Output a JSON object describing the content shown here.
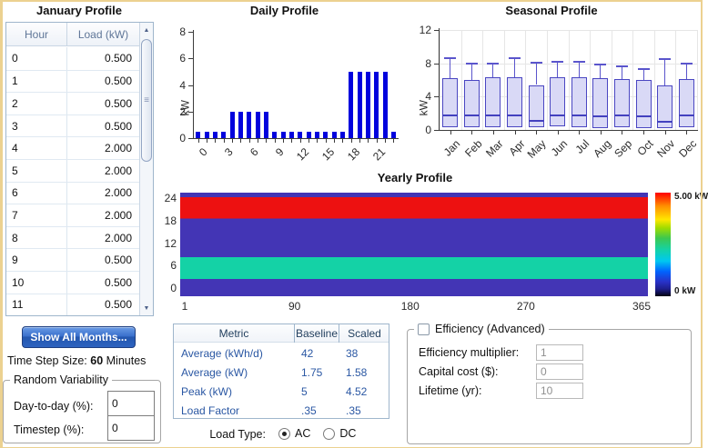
{
  "window": {
    "border_color": "#ecd190"
  },
  "left_panel": {
    "title": "January Profile",
    "table": {
      "headers": [
        "Hour",
        "Load (kW)"
      ],
      "rows": [
        [
          "0",
          "0.500"
        ],
        [
          "1",
          "0.500"
        ],
        [
          "2",
          "0.500"
        ],
        [
          "3",
          "0.500"
        ],
        [
          "4",
          "2.000"
        ],
        [
          "5",
          "2.000"
        ],
        [
          "6",
          "2.000"
        ],
        [
          "7",
          "2.000"
        ],
        [
          "8",
          "2.000"
        ],
        [
          "9",
          "0.500"
        ],
        [
          "10",
          "0.500"
        ],
        [
          "11",
          "0.500"
        ]
      ]
    },
    "show_all_months_label": "Show All Months...",
    "time_step": {
      "prefix": "Time Step Size: ",
      "value": "60",
      "suffix": " Minutes"
    },
    "random_variability": {
      "title": "Random Variability",
      "fields": [
        {
          "label": "Day-to-day (%):",
          "value": "0"
        },
        {
          "label": "Timestep (%):",
          "value": "0"
        }
      ]
    }
  },
  "metrics": {
    "headers": [
      "Metric",
      "Baseline",
      "Scaled"
    ],
    "rows": [
      [
        "Average (kWh/d)",
        "42",
        "38"
      ],
      [
        "Average (kW)",
        "1.75",
        "1.58"
      ],
      [
        "Peak (kW)",
        "5",
        "4.52"
      ],
      [
        "Load Factor",
        ".35",
        ".35"
      ]
    ]
  },
  "load_type": {
    "label": "Load Type:",
    "options": [
      {
        "label": "AC",
        "selected": true
      },
      {
        "label": "DC",
        "selected": false
      }
    ]
  },
  "efficiency": {
    "title": "Efficiency (Advanced)",
    "checked": false,
    "fields": [
      {
        "label": "Efficiency multiplier:",
        "value": "1"
      },
      {
        "label": "Capital cost ($):",
        "value": "0"
      },
      {
        "label": "Lifetime (yr):",
        "value": "10"
      }
    ]
  },
  "icons": {
    "scroll_up": "▲",
    "scroll_down": "▼",
    "scroll_grip": "≡"
  },
  "colors": {
    "bar": "#0202dd",
    "box_fill": "#d9d9f6",
    "box_border": "#4a46c2",
    "whisker": "#5a55cc",
    "median": "#4341bf",
    "metric_text": "#2a57a3",
    "button_blue": "#2d63c0",
    "table_border": "#9fb6cc"
  },
  "chart_data": [
    {
      "type": "bar",
      "title": "Daily Profile",
      "ylabel": "kW",
      "ylim": [
        0,
        8
      ],
      "yticks": [
        0,
        2,
        4,
        6,
        8
      ],
      "xticks": [
        0,
        3,
        6,
        9,
        12,
        15,
        18,
        21
      ],
      "hours": [
        0,
        1,
        2,
        3,
        4,
        5,
        6,
        7,
        8,
        9,
        10,
        11,
        12,
        13,
        14,
        15,
        16,
        17,
        18,
        19,
        20,
        21,
        22,
        23
      ],
      "values": [
        0.5,
        0.5,
        0.5,
        0.5,
        2,
        2,
        2,
        2,
        2,
        0.5,
        0.5,
        0.5,
        0.5,
        0.5,
        0.5,
        0.5,
        0.5,
        0.5,
        5,
        5,
        5,
        5,
        5,
        0.5
      ],
      "bar_color": "#0202dd"
    },
    {
      "type": "box",
      "title": "Seasonal Profile",
      "ylabel": "kW",
      "ylim": [
        0,
        12
      ],
      "yticks": [
        0,
        4,
        8,
        12
      ],
      "categories": [
        "Jan",
        "Feb",
        "Mar",
        "Apr",
        "May",
        "Jun",
        "Jul",
        "Aug",
        "Sep",
        "Oct",
        "Nov",
        "Dec"
      ],
      "series": [
        {
          "name": "Jan",
          "low": 0,
          "q1": 0.35,
          "median": 1.8,
          "q3": 6.2,
          "high": 8.6
        },
        {
          "name": "Feb",
          "low": 0,
          "q1": 0.35,
          "median": 1.75,
          "q3": 6.0,
          "high": 8.0
        },
        {
          "name": "Mar",
          "low": 0,
          "q1": 0.35,
          "median": 1.8,
          "q3": 6.35,
          "high": 7.95
        },
        {
          "name": "Apr",
          "low": 0,
          "q1": 0.35,
          "median": 1.8,
          "q3": 6.35,
          "high": 8.6
        },
        {
          "name": "May",
          "low": 0,
          "q1": 0.3,
          "median": 1.05,
          "q3": 5.4,
          "high": 8.05
        },
        {
          "name": "Jun",
          "low": 0,
          "q1": 0.4,
          "median": 1.75,
          "q3": 6.3,
          "high": 8.15
        },
        {
          "name": "Jul",
          "low": 0,
          "q1": 0.35,
          "median": 1.7,
          "q3": 6.3,
          "high": 8.15
        },
        {
          "name": "Aug",
          "low": 0,
          "q1": 0.25,
          "median": 1.6,
          "q3": 6.25,
          "high": 7.9
        },
        {
          "name": "Sep",
          "low": 0,
          "q1": 0.3,
          "median": 1.7,
          "q3": 6.15,
          "high": 7.6
        },
        {
          "name": "Oct",
          "low": 0,
          "q1": 0.2,
          "median": 1.65,
          "q3": 5.95,
          "high": 7.3
        },
        {
          "name": "Nov",
          "low": 0,
          "q1": 0.2,
          "median": 0.95,
          "q3": 5.35,
          "high": 8.5
        },
        {
          "name": "Dec",
          "low": 0,
          "q1": 0.3,
          "median": 1.7,
          "q3": 6.1,
          "high": 7.95
        }
      ]
    },
    {
      "type": "heatmap",
      "title": "Yearly Profile",
      "x_tick_labels": [
        "1",
        "90",
        "180",
        "270",
        "365"
      ],
      "x_tick_days": [
        1,
        90,
        180,
        270,
        365
      ],
      "yticks": [
        0,
        6,
        12,
        18,
        24
      ],
      "bands": [
        {
          "hour_from": 0,
          "hour_to": 4,
          "value_kw": 0.5,
          "color": "#4335b5"
        },
        {
          "hour_from": 4,
          "hour_to": 9,
          "value_kw": 2,
          "color": "#14d2a6"
        },
        {
          "hour_from": 9,
          "hour_to": 18,
          "value_kw": 0.5,
          "color": "#4335b5"
        },
        {
          "hour_from": 18,
          "hour_to": 23,
          "value_kw": 5,
          "color": "#ed1111"
        },
        {
          "hour_from": 23,
          "hour_to": 24,
          "value_kw": 0.5,
          "color": "#4335b5"
        }
      ],
      "colorbar": {
        "max_label": "5.00 kW",
        "min_label": "0 kW"
      }
    }
  ]
}
